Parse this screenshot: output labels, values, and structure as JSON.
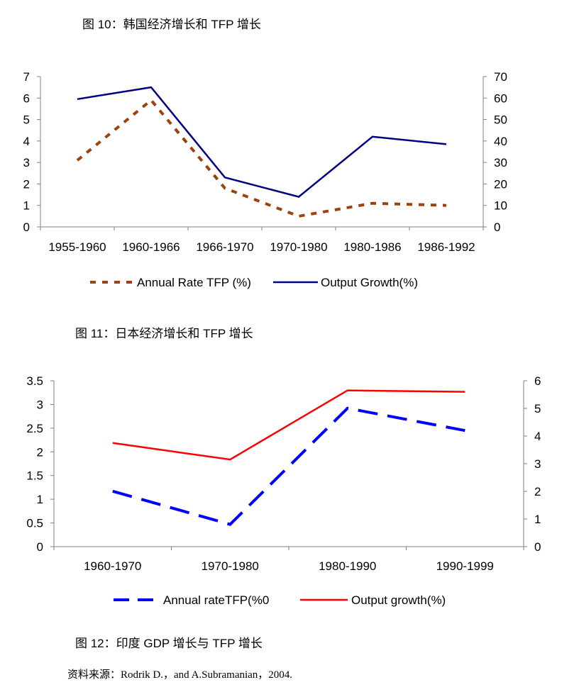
{
  "captions": {
    "fig10": "图 10：韩国经济增长和 TFP 增长",
    "fig11": "图 11：日本经济增长和 TFP 增长",
    "fig12": "图 12：印度 GDP 增长与 TFP 增长"
  },
  "source": "资料来源：Rodrik D.，and A.Subramanian，2004.",
  "chart_data": [
    {
      "type": "line",
      "title": "",
      "categories": [
        "1955-1960",
        "1960-1966",
        "1966-1970",
        "1970-1980",
        "1980-1986",
        "1986-1992"
      ],
      "series": [
        {
          "name": "Annual Rate TFP (%)",
          "axis": "left",
          "color": "#a0400a",
          "style": "dashed",
          "values": [
            3.1,
            5.9,
            1.8,
            0.5,
            1.1,
            1.0
          ]
        },
        {
          "name": "Output Growth(%)",
          "axis": "right",
          "color": "#000080",
          "style": "solid",
          "values": [
            59.5,
            65,
            23,
            14,
            42,
            38.5
          ]
        }
      ],
      "ylim_left": [
        0,
        7
      ],
      "yticks_left": [
        "0",
        "1",
        "2",
        "3",
        "4",
        "5",
        "6",
        "7"
      ],
      "ylim_right": [
        0,
        70
      ],
      "yticks_right": [
        "0",
        "10",
        "20",
        "30",
        "40",
        "50",
        "60",
        "70"
      ],
      "grid": false,
      "legend": "bottom"
    },
    {
      "type": "line",
      "title": "",
      "categories": [
        "1960-1970",
        "1970-1980",
        "1980-1990",
        "1990-1999"
      ],
      "series": [
        {
          "name": "Annual rateTFP(%0",
          "axis": "left",
          "color": "#0000ff",
          "style": "dashed",
          "values": [
            1.17,
            0.47,
            2.92,
            2.45
          ]
        },
        {
          "name": "Output growth(%)",
          "axis": "right",
          "color": "#ff0000",
          "style": "solid",
          "values": [
            3.75,
            3.15,
            5.65,
            5.6
          ]
        }
      ],
      "ylim_left": [
        0,
        3.5
      ],
      "yticks_left": [
        "0",
        "0.5",
        "1",
        "1.5",
        "2",
        "2.5",
        "3",
        "3.5"
      ],
      "ylim_right": [
        0,
        6
      ],
      "yticks_right": [
        "0",
        "1",
        "2",
        "3",
        "4",
        "5",
        "6"
      ],
      "grid": false,
      "legend": "bottom"
    }
  ]
}
